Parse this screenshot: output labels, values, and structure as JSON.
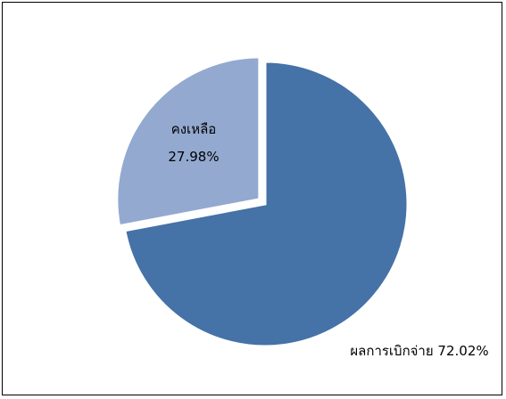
{
  "chart_data": {
    "type": "pie",
    "title": "",
    "start_angle_deg": 0,
    "exploded_series_index": 1,
    "legend": "none",
    "series": [
      {
        "name": "ผลการเบิกจ่าย",
        "value": 72.02,
        "value_label": "72.02%",
        "label": "ผลการเบิกจ่าย 72.02%",
        "color": "#4572A7"
      },
      {
        "name": "คงเหลือ",
        "value": 27.98,
        "value_label": "27.98%",
        "label_line1": "คงเหลือ",
        "label_line2": "27.98%",
        "color": "#93A9D0"
      }
    ],
    "colors": {
      "stroke": "#ffffff",
      "background": "#ffffff",
      "border": "#000000"
    }
  }
}
